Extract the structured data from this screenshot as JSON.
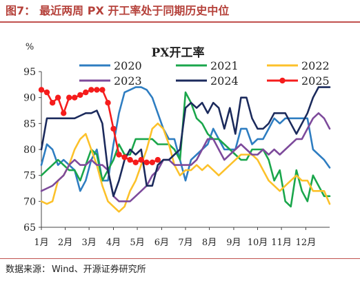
{
  "header": {
    "figure_label": "图7：",
    "figure_title": "最近两周 PX 开工率处于同期历史中位"
  },
  "footer": {
    "source_label": "数据来源：",
    "source_text": "Wind、开源证券研究所"
  },
  "chart_data": {
    "type": "line",
    "title": "PX开工率",
    "ylabel": "%",
    "xlabel": "",
    "ylim": [
      65,
      95
    ],
    "yticks": [
      65,
      70,
      75,
      80,
      85,
      90,
      95
    ],
    "x_domain": [
      0,
      52
    ],
    "x_unit": "week of year",
    "x_tick_positions": [
      0,
      4.3,
      8.6,
      13,
      17.3,
      21.7,
      26,
      30.3,
      34.7,
      39,
      43.3,
      47.7
    ],
    "x_tick_labels": [
      "1月",
      "2月",
      "3月",
      "4月",
      "5月",
      "6月",
      "7月",
      "8月",
      "9月",
      "10月",
      "11月",
      "12月"
    ],
    "grid": false,
    "legend_position": "top",
    "series": [
      {
        "name": "2020",
        "color": "#2e7dc1",
        "marker": false,
        "x": [
          0,
          1,
          2,
          3,
          4,
          5,
          6,
          7,
          8,
          9,
          10,
          11,
          12,
          13,
          14,
          15,
          16,
          17,
          18,
          19,
          20,
          21,
          22,
          23,
          24,
          25,
          26,
          27,
          28,
          29,
          30,
          31,
          32,
          33,
          34,
          35,
          36,
          37,
          38,
          39,
          40,
          41,
          42,
          43,
          44,
          45,
          46,
          47,
          48,
          49,
          50,
          51,
          52
        ],
        "y": [
          77,
          81,
          80,
          77,
          78,
          77,
          76,
          72,
          74,
          78,
          80,
          74,
          74,
          81,
          87,
          91,
          91.5,
          92,
          92,
          91.5,
          90,
          87,
          84,
          82,
          82,
          78,
          74,
          78,
          79,
          80,
          81,
          84,
          82,
          80,
          80,
          80,
          84,
          84,
          81,
          82,
          82,
          84,
          86,
          85,
          86,
          86,
          86,
          86,
          86,
          80,
          79,
          78,
          76.5
        ]
      },
      {
        "name": "2021",
        "color": "#1aa64b",
        "marker": false,
        "x": [
          0,
          1,
          2,
          3,
          4,
          5,
          6,
          7,
          8,
          9,
          10,
          11,
          12,
          13,
          14,
          15,
          16,
          17,
          18,
          19,
          20,
          21,
          22,
          23,
          24,
          25,
          26,
          27,
          28,
          29,
          30,
          31,
          32,
          33,
          34,
          35,
          36,
          37,
          38,
          39,
          40,
          41,
          42,
          43,
          44,
          45,
          46,
          47,
          48,
          49,
          50,
          51,
          52
        ],
        "y": [
          75,
          76,
          77,
          78,
          77,
          76,
          76,
          74,
          77,
          80,
          79,
          74,
          76,
          78,
          81,
          79,
          79,
          82,
          82,
          82,
          82,
          81,
          81,
          81,
          80,
          78,
          91,
          89,
          86,
          85,
          83,
          82,
          82,
          81,
          80,
          79,
          78,
          78,
          80,
          80,
          80,
          78,
          74,
          76,
          70,
          69,
          76,
          72,
          70,
          75,
          73,
          71,
          71
        ]
      },
      {
        "name": "2022",
        "color": "#fcc12a",
        "marker": false,
        "x": [
          0,
          1,
          2,
          3,
          4,
          5,
          6,
          7,
          8,
          9,
          10,
          11,
          12,
          13,
          14,
          15,
          16,
          17,
          18,
          19,
          20,
          21,
          22,
          23,
          24,
          25,
          26,
          27,
          28,
          29,
          30,
          31,
          32,
          33,
          34,
          35,
          36,
          37,
          38,
          39,
          40,
          41,
          42,
          43,
          44,
          45,
          46,
          47,
          48,
          49,
          50,
          51,
          52
        ],
        "y": [
          70,
          69.5,
          70,
          74,
          75,
          77,
          80,
          82,
          83,
          80,
          77,
          73,
          70,
          69,
          68,
          69,
          72,
          74,
          77,
          80,
          84,
          85,
          84,
          81,
          77,
          75,
          76,
          76,
          77,
          76,
          77,
          76,
          75,
          76,
          77,
          78,
          79,
          79,
          79,
          78,
          76,
          74,
          73,
          72,
          73,
          74,
          75,
          74,
          74,
          72,
          72,
          72,
          69.5
        ]
      },
      {
        "name": "2023",
        "color": "#7d4a9b",
        "marker": false,
        "x": [
          0,
          1,
          2,
          3,
          4,
          5,
          6,
          7,
          8,
          9,
          10,
          11,
          12,
          13,
          14,
          15,
          16,
          17,
          18,
          19,
          20,
          21,
          22,
          23,
          24,
          25,
          26,
          27,
          28,
          29,
          30,
          31,
          32,
          33,
          34,
          35,
          36,
          37,
          38,
          39,
          40,
          41,
          42,
          43,
          44,
          45,
          46,
          47,
          48,
          49,
          50,
          51,
          52
        ],
        "y": [
          72,
          72.5,
          73,
          74,
          75,
          77,
          78,
          77,
          77,
          78,
          77,
          77,
          76,
          71,
          70,
          70,
          70,
          71,
          72,
          73,
          75,
          76,
          78,
          78,
          77,
          77,
          77,
          77,
          78,
          80,
          82,
          82,
          80,
          78,
          79,
          80,
          81,
          80,
          79,
          79,
          80,
          79,
          80,
          79,
          80,
          81,
          82,
          82,
          84,
          86,
          87,
          86,
          84
        ]
      },
      {
        "name": "2024",
        "color": "#1b2a5c",
        "marker": false,
        "x": [
          0,
          1,
          2,
          3,
          4,
          5,
          6,
          7,
          8,
          9,
          10,
          11,
          12,
          13,
          14,
          15,
          16,
          17,
          18,
          19,
          20,
          21,
          22,
          23,
          24,
          25,
          26,
          27,
          28,
          29,
          30,
          31,
          32,
          33,
          34,
          35,
          36,
          37,
          38,
          39,
          40,
          41,
          42,
          43,
          44,
          45,
          46,
          47,
          48,
          49,
          50,
          51,
          52
        ],
        "y": [
          80,
          86,
          86,
          86,
          86,
          86,
          86,
          86.5,
          87,
          87,
          87.5,
          85,
          76,
          71,
          74,
          78,
          80,
          79,
          80,
          73,
          73,
          77,
          78,
          78,
          79,
          80,
          88,
          89,
          88,
          89,
          87,
          89,
          88,
          84,
          88,
          83,
          90,
          90,
          86,
          84,
          84,
          85,
          87,
          87,
          87,
          85,
          83,
          85,
          87,
          90,
          92,
          92,
          92
        ]
      },
      {
        "name": "2025",
        "color": "#f51c1c",
        "marker": true,
        "x": [
          0,
          1,
          2,
          3,
          4,
          5,
          6,
          7,
          8,
          9,
          10,
          11,
          12,
          13,
          14,
          15,
          16,
          17,
          18,
          19,
          20,
          21
        ],
        "y": [
          91.5,
          91,
          89,
          90,
          87,
          90,
          90,
          90.5,
          91,
          91.5,
          91.5,
          91.5,
          89,
          84,
          79,
          78.5,
          78,
          77.5,
          78,
          77.5,
          77.5,
          78
        ]
      }
    ]
  }
}
